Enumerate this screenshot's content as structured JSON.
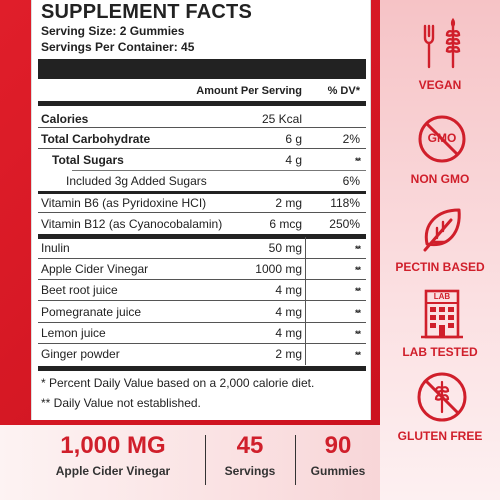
{
  "panel": {
    "title": "SUPPLEMENT FACTS",
    "serving_size": "Serving Size: 2 Gummies",
    "servings_per_container": "Servings Per Container: 45",
    "header_amount": "Amount Per Serving",
    "header_dv": "% DV*",
    "rows": [
      {
        "name": "Calories",
        "amount": "25 Kcal",
        "dv": ""
      },
      {
        "name": "Total Carbohydrate",
        "amount": "6 g",
        "dv": "2%"
      },
      {
        "name": "Total Sugars",
        "amount": "4 g",
        "dv": "**"
      },
      {
        "name": "Included  3g Added Sugars",
        "amount": "",
        "dv": "6%"
      },
      {
        "name": "Vitamin B6 (as Pyridoxine HCI)",
        "amount": "2 mg",
        "dv": "118%"
      },
      {
        "name": "Vitamin B12 (as Cyanocobalamin)",
        "amount": "6 mcg",
        "dv": "250%"
      },
      {
        "name": "Inulin",
        "amount": "50 mg",
        "dv": "**"
      },
      {
        "name": "Apple Cider Vinegar",
        "amount": "1000 mg",
        "dv": "**"
      },
      {
        "name": "Beet root juice",
        "amount": "4 mg",
        "dv": "**"
      },
      {
        "name": "Pomegranate juice",
        "amount": "4 mg",
        "dv": "**"
      },
      {
        "name": "Lemon juice",
        "amount": "4 mg",
        "dv": "**"
      },
      {
        "name": "Ginger powder",
        "amount": "2 mg",
        "dv": "**"
      }
    ],
    "footnote1": "* Percent Daily Value based on a 2,000 calorie diet.",
    "footnote2": "** Daily Value not established."
  },
  "badges": [
    {
      "label": "VEGAN",
      "icon": "fork-wheat-icon"
    },
    {
      "label": "NON GMO",
      "icon": "non-gmo-icon"
    },
    {
      "label": "PECTIN BASED",
      "icon": "leaf-icon"
    },
    {
      "label": "LAB TESTED",
      "icon": "lab-building-icon"
    },
    {
      "label": "GLUTEN FREE",
      "icon": "gluten-free-icon"
    }
  ],
  "gmo_text": "GMO",
  "lab_text": "LAB",
  "stats": [
    {
      "value": "1,000 MG",
      "label": "Apple Cider Vinegar"
    },
    {
      "value": "45",
      "label": "Servings"
    },
    {
      "value": "90",
      "label": "Gummies"
    }
  ],
  "colors": {
    "accent": "#d01f2b",
    "panel_bg": "#ffffff",
    "text": "#222222"
  }
}
